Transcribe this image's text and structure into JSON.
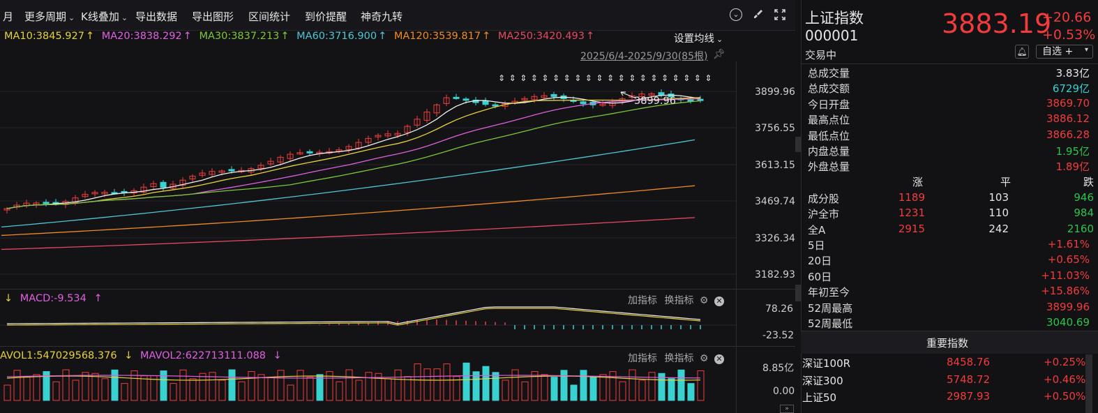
{
  "toolbar": {
    "items": [
      "月",
      "更多周期",
      "K线叠加",
      "导出数据",
      "导出图形",
      "区间统计",
      "到价提醒",
      "神奇九转"
    ]
  },
  "ma_legend": {
    "ma10": "MA10:3845.927",
    "ma20": "MA20:3838.292",
    "ma30": "MA30:3837.213",
    "ma60": "MA60:3716.900",
    "ma120": "MA120:3539.817",
    "ma250": "MA250:3420.493",
    "up_arrow": "↑",
    "setting_label": "设置均线",
    "range_label": "2025/6/4-2025/9/30(85根)",
    "colors": {
      "ma10": "#e8d23c",
      "ma20": "#e060e0",
      "ma30": "#7cc83a",
      "ma60": "#4fc6d6",
      "ma120": "#f08a24",
      "ma250": "#e84860"
    }
  },
  "y_axis": {
    "main": [
      "3899.96",
      "3756.55",
      "3613.15",
      "3469.74",
      "3326.34",
      "3182.93"
    ],
    "macd": [
      "78.26",
      "-23.52"
    ],
    "vol": [
      "8.85亿",
      "0.00"
    ]
  },
  "high_marker": "3899.96",
  "macd": {
    "arrow_down": "↓",
    "label": "MACD:-9.534",
    "arrow_up": "↑",
    "add": "加指标",
    "swap": "换指标"
  },
  "vol": {
    "label1": "AVOL1:547029568.376",
    "arrow_down": "↓",
    "label2": "MAVOL2:622713111.088",
    "arrow_down2": "↓",
    "add": "加指标",
    "swap": "换指标"
  },
  "quote": {
    "name": "上证指数",
    "code": "000001",
    "status": "交易中",
    "price": "3883.19",
    "change": "+20.66",
    "change_pct": "+0.53%",
    "watch_label": "自选 +",
    "stats": [
      {
        "label": "总成交量",
        "value": "3.83亿",
        "color": "white"
      },
      {
        "label": "总成交额",
        "value": "6729亿",
        "color": "cyan"
      },
      {
        "label": "今日开盘",
        "value": "3869.70",
        "color": "red"
      },
      {
        "label": "最高点位",
        "value": "3886.12",
        "color": "red"
      },
      {
        "label": "最低点位",
        "value": "3866.28",
        "color": "red"
      },
      {
        "label": "内盘总量",
        "value": "1.95亿",
        "color": "green"
      },
      {
        "label": "外盘总量",
        "value": "1.89亿",
        "color": "red"
      }
    ],
    "breadth_header": {
      "up": "涨",
      "flat": "平",
      "down": "跌"
    },
    "breadth": [
      {
        "label": "成分股",
        "up": "1189",
        "flat": "103",
        "down": "946"
      },
      {
        "label": "沪全市",
        "up": "1231",
        "flat": "110",
        "down": "984"
      },
      {
        "label": "全A",
        "up": "2915",
        "flat": "242",
        "down": "2160"
      }
    ],
    "periods": [
      {
        "label": "5日",
        "value": "+1.61%",
        "color": "red"
      },
      {
        "label": "20日",
        "value": "+0.65%",
        "color": "red"
      },
      {
        "label": "60日",
        "value": "+11.03%",
        "color": "red"
      },
      {
        "label": "年初至今",
        "value": "+15.86%",
        "color": "red"
      },
      {
        "label": "52周最高",
        "value": "3899.96",
        "color": "red"
      },
      {
        "label": "52周最低",
        "value": "3040.69",
        "color": "green"
      }
    ],
    "important_title": "重要指数",
    "indices": [
      {
        "name": "深证100R",
        "value": "8458.76",
        "pct": "+0.25%"
      },
      {
        "name": "深证300",
        "value": "5748.72",
        "pct": "+0.46%"
      },
      {
        "name": "上证50",
        "value": "2987.93",
        "pct": "+0.50%"
      }
    ]
  }
}
